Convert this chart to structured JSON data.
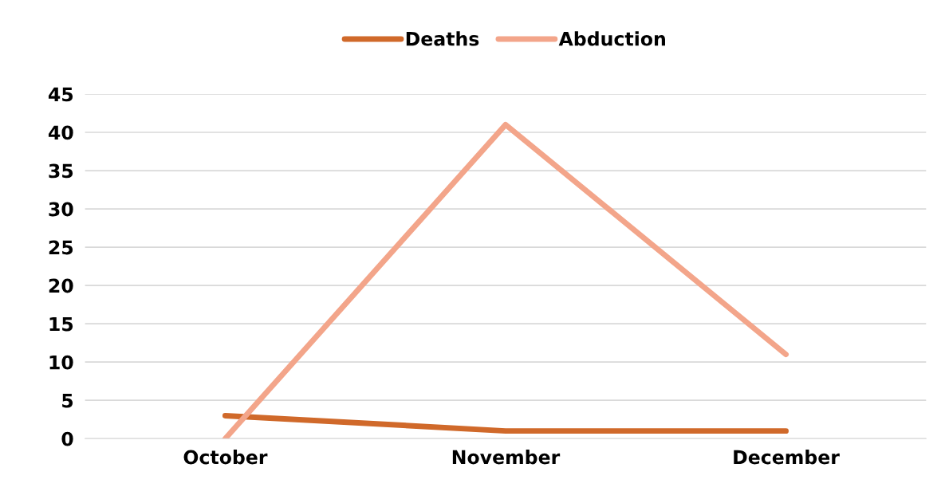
{
  "chart_data": {
    "type": "line",
    "categories": [
      "October",
      "November",
      "December"
    ],
    "series": [
      {
        "name": "Deaths",
        "color": "#d0692a",
        "values": [
          3,
          1,
          1
        ]
      },
      {
        "name": "Abduction",
        "color": "#f3a58a",
        "values": [
          0,
          41,
          11
        ]
      }
    ],
    "ylim": [
      0,
      45
    ],
    "yticks": [
      0,
      5,
      10,
      15,
      20,
      25,
      30,
      35,
      40,
      45
    ],
    "grid": "y",
    "legend": "top",
    "marker": "none",
    "line_style": "solid"
  }
}
